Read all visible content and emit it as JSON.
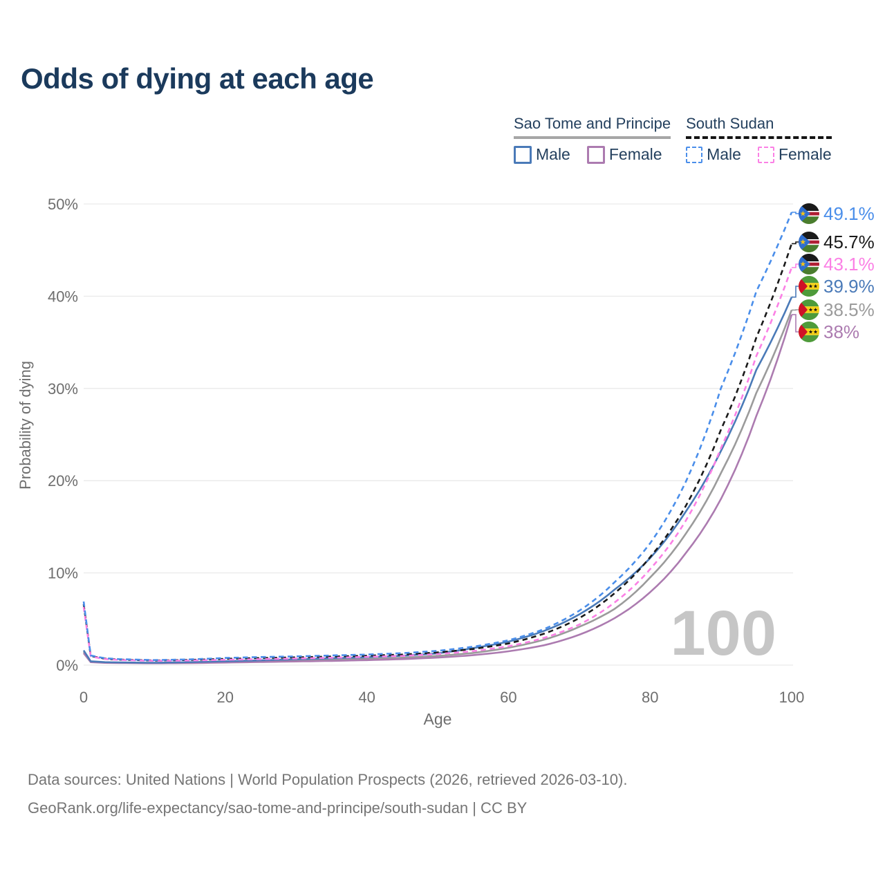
{
  "title": "Odds of dying at each age",
  "legend": {
    "groups": [
      {
        "name": "Sao Tome and Principe",
        "line_style": "solid",
        "underline_color": "#a6a6a6",
        "items": [
          {
            "label": "Male",
            "color": "#4a7ab8",
            "dashed": false
          },
          {
            "label": "Female",
            "color": "#ac7bb0",
            "dashed": false
          }
        ]
      },
      {
        "name": "South Sudan",
        "line_style": "dashed",
        "underline_color": "#141414",
        "items": [
          {
            "label": "Male",
            "color": "#4a8eea",
            "dashed": true
          },
          {
            "label": "Female",
            "color": "#fb80e5",
            "dashed": true
          }
        ]
      }
    ]
  },
  "watermark": "100",
  "chart_data": {
    "type": "line",
    "title": "Odds of dying at each age",
    "xlabel": "Age",
    "ylabel": "Probability of dying",
    "xlim": [
      0,
      100
    ],
    "ylim": [
      0,
      50
    ],
    "x_ticks": [
      0,
      20,
      40,
      60,
      80,
      100
    ],
    "y_ticks": [
      {
        "value": 0,
        "label": "0%"
      },
      {
        "value": 10,
        "label": "10%"
      },
      {
        "value": 20,
        "label": "20%"
      },
      {
        "value": 30,
        "label": "30%"
      },
      {
        "value": 40,
        "label": "40%"
      },
      {
        "value": 50,
        "label": "50%"
      }
    ],
    "grid": true,
    "legend_position": "top-right",
    "ages": [
      0,
      1,
      3,
      5,
      10,
      15,
      20,
      25,
      30,
      35,
      40,
      45,
      50,
      55,
      60,
      65,
      70,
      75,
      80,
      85,
      90,
      95,
      100
    ],
    "series": [
      {
        "name": "South Sudan (Male)",
        "country": "South Sudan",
        "sex": "Male",
        "color": "#4a8eea",
        "dashed": true,
        "flag": "south-sudan",
        "end_label": "49.1%",
        "end_value": 49.1,
        "values": [
          6.9,
          1.05,
          0.75,
          0.65,
          0.55,
          0.62,
          0.78,
          0.88,
          0.95,
          1.05,
          1.15,
          1.3,
          1.55,
          2.0,
          2.7,
          3.9,
          5.9,
          9.0,
          13.2,
          19.8,
          30.0,
          40.5,
          49.1
        ]
      },
      {
        "name": "South Sudan",
        "country": "South Sudan",
        "sex": "Both",
        "color": "#1a1a1a",
        "dashed": true,
        "flag": "south-sudan",
        "end_label": "45.7%",
        "end_value": 45.7,
        "values": [
          6.6,
          1.0,
          0.7,
          0.6,
          0.5,
          0.56,
          0.68,
          0.77,
          0.84,
          0.93,
          1.02,
          1.15,
          1.38,
          1.75,
          2.35,
          3.4,
          5.1,
          7.8,
          11.7,
          17.2,
          25.5,
          35.5,
          45.7
        ]
      },
      {
        "name": "South Sudan (Female)",
        "country": "South Sudan",
        "sex": "Female",
        "color": "#fb80e5",
        "dashed": true,
        "flag": "south-sudan",
        "end_label": "43.1%",
        "end_value": 43.1,
        "values": [
          6.3,
          0.95,
          0.66,
          0.56,
          0.47,
          0.5,
          0.58,
          0.65,
          0.72,
          0.8,
          0.9,
          1.0,
          1.2,
          1.52,
          2.05,
          2.95,
          4.4,
          6.8,
          10.4,
          15.6,
          23.5,
          33.5,
          43.1
        ]
      },
      {
        "name": "Sao Tome and Principe (Male)",
        "country": "Sao Tome and Principe",
        "sex": "Male",
        "color": "#4a7ab8",
        "dashed": false,
        "flag": "sao-tome-and-principe",
        "end_label": "39.9%",
        "end_value": 39.9,
        "values": [
          1.6,
          0.42,
          0.32,
          0.29,
          0.26,
          0.32,
          0.42,
          0.52,
          0.63,
          0.74,
          0.86,
          1.02,
          1.28,
          1.85,
          2.55,
          3.7,
          5.5,
          8.2,
          11.6,
          16.6,
          23.2,
          32.0,
          39.9
        ]
      },
      {
        "name": "Sao Tome and Principe",
        "country": "Sao Tome and Principe",
        "sex": "Both",
        "color": "#9b9b9b",
        "dashed": false,
        "flag": "sao-tome-and-principe",
        "end_label": "38.5%",
        "end_value": 38.5,
        "values": [
          1.45,
          0.37,
          0.28,
          0.26,
          0.23,
          0.27,
          0.35,
          0.43,
          0.5,
          0.58,
          0.67,
          0.8,
          1.0,
          1.32,
          1.88,
          2.75,
          4.15,
          6.1,
          9.5,
          14.2,
          20.8,
          29.5,
          38.5
        ]
      },
      {
        "name": "Sao Tome and Principe (Female)",
        "country": "Sao Tome and Principe",
        "sex": "Female",
        "color": "#ac7bb0",
        "dashed": false,
        "flag": "sao-tome-and-principe",
        "end_label": "38%",
        "end_value": 38.0,
        "values": [
          1.3,
          0.32,
          0.25,
          0.23,
          0.2,
          0.22,
          0.28,
          0.34,
          0.4,
          0.46,
          0.54,
          0.65,
          0.82,
          1.08,
          1.5,
          2.15,
          3.3,
          5.1,
          7.9,
          12.1,
          18.0,
          27.0,
          38.0
        ]
      }
    ]
  },
  "footer": {
    "line1": "Data sources: United Nations | World Population Prospects (2026, retrieved 2026-03-10).",
    "line2": "GeoRank.org/life-expectancy/sao-tome-and-principe/south-sudan | CC BY"
  }
}
